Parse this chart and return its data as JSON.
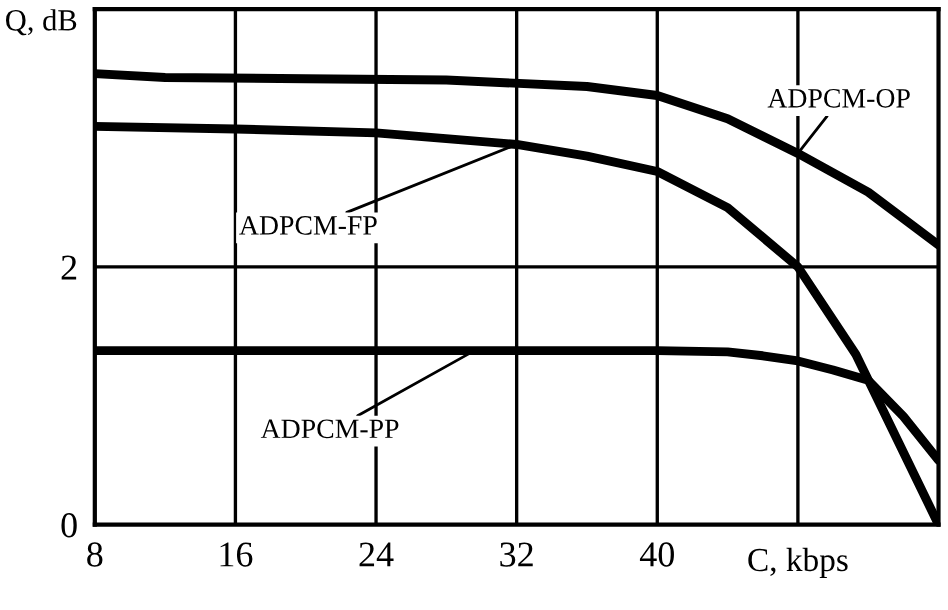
{
  "chart_data": {
    "type": "line",
    "xlabel": "C, kbps",
    "ylabel": "Q, dB",
    "xlim": [
      8,
      56
    ],
    "ylim": [
      0,
      4
    ],
    "xticks": [
      8,
      16,
      24,
      32,
      40,
      {
        "value": 48,
        "label": null
      }
    ],
    "yticks": [
      0,
      2
    ],
    "grid": true,
    "marker": "none",
    "line_style": "solid",
    "series": [
      {
        "name": "ADPCM-OP",
        "color": "#000000",
        "x": [
          8,
          12,
          20,
          28,
          36,
          40,
          44,
          48,
          52,
          56
        ],
        "values": [
          3.5,
          3.47,
          3.46,
          3.45,
          3.4,
          3.33,
          3.15,
          2.88,
          2.58,
          2.17
        ]
      },
      {
        "name": "ADPCM-FP",
        "color": "#000000",
        "x": [
          8,
          16,
          24,
          32,
          36,
          40,
          44,
          48,
          51.3,
          56
        ],
        "values": [
          3.09,
          3.07,
          3.04,
          2.95,
          2.86,
          2.74,
          2.46,
          2.0,
          1.32,
          0
        ]
      },
      {
        "name": "ADPCM-PP",
        "color": "#000000",
        "x": [
          8,
          40,
          44,
          46,
          48,
          50,
          52,
          54,
          56
        ],
        "values": [
          1.35,
          1.35,
          1.34,
          1.31,
          1.27,
          1.2,
          1.12,
          0.84,
          0.5
        ]
      }
    ]
  }
}
